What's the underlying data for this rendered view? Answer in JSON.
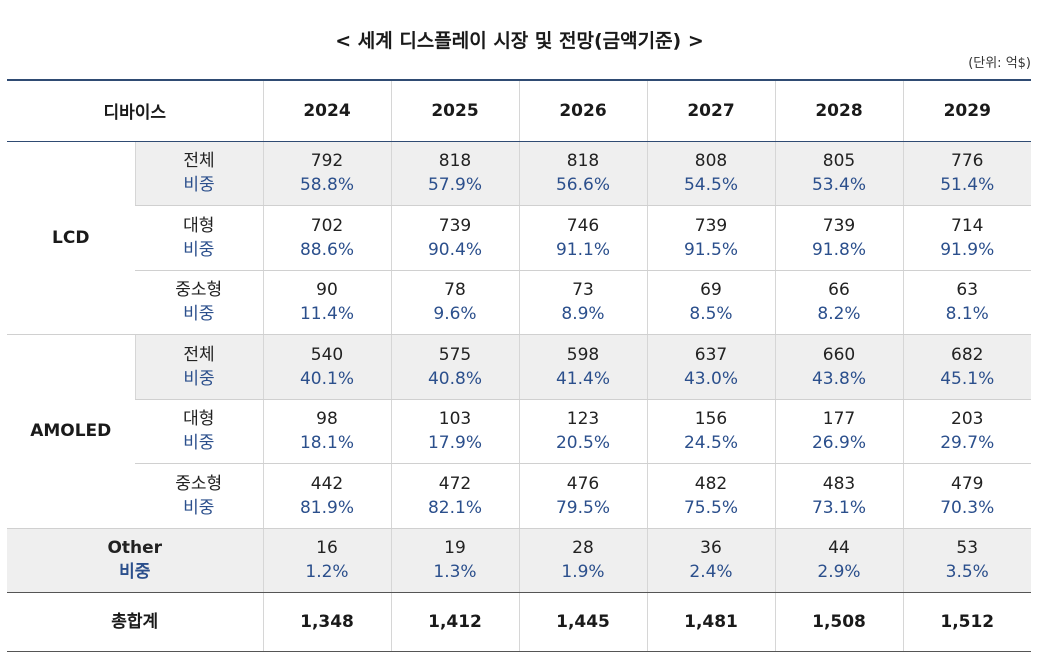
{
  "title": "< 세계 디스플레이 시장 및 전망(금액기준) >",
  "unit": "(단위: 억$)",
  "header": {
    "device": "디바이스",
    "years": [
      "2024",
      "2025",
      "2026",
      "2027",
      "2028",
      "2029"
    ]
  },
  "groups": [
    {
      "name": "LCD",
      "rows": [
        {
          "label": "전체",
          "sub": "비중",
          "values": [
            "792",
            "818",
            "818",
            "808",
            "805",
            "776"
          ],
          "shares": [
            "58.8%",
            "57.9%",
            "56.6%",
            "54.5%",
            "53.4%",
            "51.4%"
          ]
        },
        {
          "label": "대형",
          "sub": "비중",
          "values": [
            "702",
            "739",
            "746",
            "739",
            "739",
            "714"
          ],
          "shares": [
            "88.6%",
            "90.4%",
            "91.1%",
            "91.5%",
            "91.8%",
            "91.9%"
          ]
        },
        {
          "label": "중소형",
          "sub": "비중",
          "values": [
            "90",
            "78",
            "73",
            "69",
            "66",
            "63"
          ],
          "shares": [
            "11.4%",
            "9.6%",
            "8.9%",
            "8.5%",
            "8.2%",
            "8.1%"
          ]
        }
      ]
    },
    {
      "name": "AMOLED",
      "rows": [
        {
          "label": "전체",
          "sub": "비중",
          "values": [
            "540",
            "575",
            "598",
            "637",
            "660",
            "682"
          ],
          "shares": [
            "40.1%",
            "40.8%",
            "41.4%",
            "43.0%",
            "43.8%",
            "45.1%"
          ]
        },
        {
          "label": "대형",
          "sub": "비중",
          "values": [
            "98",
            "103",
            "123",
            "156",
            "177",
            "203"
          ],
          "shares": [
            "18.1%",
            "17.9%",
            "20.5%",
            "24.5%",
            "26.9%",
            "29.7%"
          ]
        },
        {
          "label": "중소형",
          "sub": "비중",
          "values": [
            "442",
            "472",
            "476",
            "482",
            "483",
            "479"
          ],
          "shares": [
            "81.9%",
            "82.1%",
            "79.5%",
            "75.5%",
            "73.1%",
            "70.3%"
          ]
        }
      ]
    }
  ],
  "other": {
    "label": "Other",
    "sub": "비중",
    "values": [
      "16",
      "19",
      "28",
      "36",
      "44",
      "53"
    ],
    "shares": [
      "1.2%",
      "1.3%",
      "1.9%",
      "2.4%",
      "2.9%",
      "3.5%"
    ]
  },
  "total": {
    "label": "총합계",
    "values": [
      "1,348",
      "1,412",
      "1,445",
      "1,481",
      "1,508",
      "1,512"
    ]
  }
}
